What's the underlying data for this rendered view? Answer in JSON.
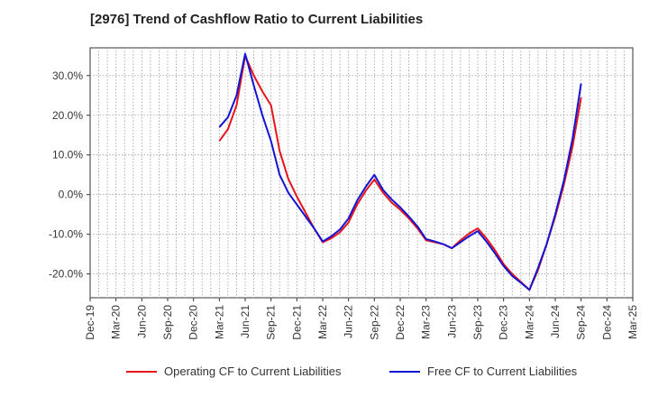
{
  "chart_data": {
    "type": "line",
    "title": "[2976]  Trend of Cashflow Ratio to Current Liabilities",
    "xlabel": "",
    "ylabel": "",
    "ylim": [
      -26,
      37
    ],
    "y_ticks": [
      30,
      20,
      10,
      0,
      -10,
      -20
    ],
    "y_tick_labels": [
      "30.0%",
      "20.0%",
      "10.0%",
      "0.0%",
      "-10.0%",
      "-20.0%"
    ],
    "x_tick_labels": [
      "Dec-19",
      "Mar-20",
      "Jun-20",
      "Sep-20",
      "Dec-20",
      "Mar-21",
      "Jun-21",
      "Sep-21",
      "Dec-21",
      "Mar-22",
      "Jun-22",
      "Sep-22",
      "Dec-22",
      "Mar-23",
      "Jun-23",
      "Sep-23",
      "Dec-23",
      "Mar-24",
      "Jun-24",
      "Sep-24",
      "Dec-24",
      "Mar-25"
    ],
    "grid": true,
    "legend_position": "bottom",
    "series": [
      {
        "name": "Operating CF to Current Liabilities",
        "color": "#e8141b",
        "points": [
          [
            "Mar-21",
            13.5
          ],
          [
            "Apr-21",
            16.5
          ],
          [
            "May-21",
            22.5
          ],
          [
            "Jun-21",
            35
          ],
          [
            "Jul-21",
            30
          ],
          [
            "Aug-21",
            26
          ],
          [
            "Sep-21",
            22.5
          ],
          [
            "Oct-21",
            11
          ],
          [
            "Nov-21",
            4
          ],
          [
            "Dec-21",
            -0.5
          ],
          [
            "Jan-22",
            -4.5
          ],
          [
            "Feb-22",
            -8.5
          ],
          [
            "Mar-22",
            -12
          ],
          [
            "Apr-22",
            -11
          ],
          [
            "May-22",
            -9.5
          ],
          [
            "Jun-22",
            -7
          ],
          [
            "Jul-22",
            -2.5
          ],
          [
            "Aug-22",
            1
          ],
          [
            "Sep-22",
            3.8
          ],
          [
            "Oct-22",
            0.5
          ],
          [
            "Nov-22",
            -2
          ],
          [
            "Dec-22",
            -3.8
          ],
          [
            "Jan-23",
            -6
          ],
          [
            "Feb-23",
            -8.5
          ],
          [
            "Mar-23",
            -11.5
          ],
          [
            "Apr-23",
            -12
          ],
          [
            "May-23",
            -12.5
          ],
          [
            "Jun-23",
            -13.5
          ],
          [
            "Jul-23",
            -11.5
          ],
          [
            "Aug-23",
            -9.8
          ],
          [
            "Sep-23",
            -8.5
          ],
          [
            "Oct-23",
            -11
          ],
          [
            "Nov-23",
            -14
          ],
          [
            "Dec-23",
            -17.5
          ],
          [
            "Jan-24",
            -20
          ],
          [
            "Feb-24",
            -22
          ],
          [
            "Mar-24",
            -24
          ],
          [
            "Apr-24",
            -19
          ],
          [
            "May-24",
            -12.5
          ],
          [
            "Jun-24",
            -5.5
          ],
          [
            "Jul-24",
            2.5
          ],
          [
            "Aug-24",
            12
          ],
          [
            "Sep-24",
            24.5
          ]
        ]
      },
      {
        "name": "Free CF to Current Liabilities",
        "color": "#1414d4",
        "points": [
          [
            "Mar-21",
            17
          ],
          [
            "Apr-21",
            19.5
          ],
          [
            "May-21",
            25
          ],
          [
            "Jun-21",
            35.5
          ],
          [
            "Jul-21",
            27.5
          ],
          [
            "Aug-21",
            20
          ],
          [
            "Sep-21",
            13.5
          ],
          [
            "Oct-21",
            5
          ],
          [
            "Nov-21",
            0.5
          ],
          [
            "Dec-21",
            -2.5
          ],
          [
            "Jan-22",
            -5.5
          ],
          [
            "Feb-22",
            -8.5
          ],
          [
            "Mar-22",
            -11.8
          ],
          [
            "Apr-22",
            -10.5
          ],
          [
            "May-22",
            -8.8
          ],
          [
            "Jun-22",
            -6
          ],
          [
            "Jul-22",
            -1.5
          ],
          [
            "Aug-22",
            2
          ],
          [
            "Sep-22",
            5
          ],
          [
            "Oct-22",
            1.2
          ],
          [
            "Nov-22",
            -1.2
          ],
          [
            "Dec-22",
            -3.2
          ],
          [
            "Jan-23",
            -5.5
          ],
          [
            "Feb-23",
            -8
          ],
          [
            "Mar-23",
            -11.2
          ],
          [
            "Apr-23",
            -11.8
          ],
          [
            "May-23",
            -12.5
          ],
          [
            "Jun-23",
            -13.5
          ],
          [
            "Jul-23",
            -12
          ],
          [
            "Aug-23",
            -10.5
          ],
          [
            "Sep-23",
            -9.2
          ],
          [
            "Oct-23",
            -11.8
          ],
          [
            "Nov-23",
            -14.8
          ],
          [
            "Dec-23",
            -18
          ],
          [
            "Jan-24",
            -20.5
          ],
          [
            "Feb-24",
            -22.2
          ],
          [
            "Mar-24",
            -24
          ],
          [
            "Apr-24",
            -18.5
          ],
          [
            "May-24",
            -12.5
          ],
          [
            "Jun-24",
            -5
          ],
          [
            "Jul-24",
            3.5
          ],
          [
            "Aug-24",
            14
          ],
          [
            "Sep-24",
            28
          ]
        ]
      }
    ]
  }
}
